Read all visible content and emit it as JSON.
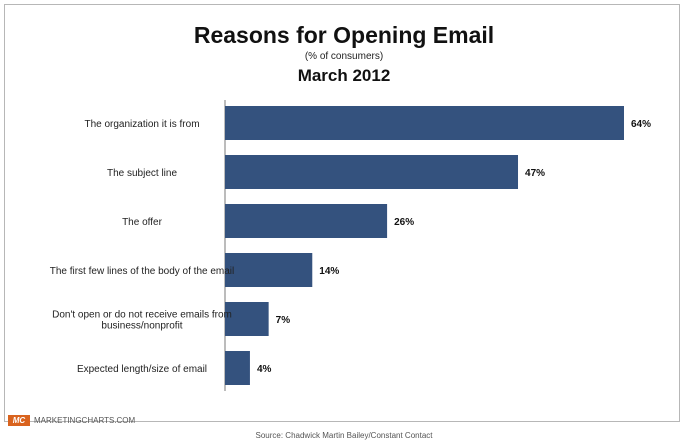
{
  "chart_data": {
    "type": "bar",
    "orientation": "horizontal",
    "title": "Reasons for Opening Email",
    "subtitle": "(% of consumers)",
    "date_label": "March 2012",
    "categories": [
      [
        "The organization it is from"
      ],
      [
        "The subject line"
      ],
      [
        "The offer"
      ],
      [
        "The first few lines of the body of the email"
      ],
      [
        "Don't open or do not receive emails from",
        "business/nonprofit"
      ],
      [
        "Expected length/size of email"
      ]
    ],
    "values": [
      64,
      47,
      26,
      14,
      7,
      4
    ],
    "value_labels": [
      "64%",
      "47%",
      "26%",
      "14%",
      "7%",
      "4%"
    ],
    "xlim": [
      0,
      64
    ],
    "bar_color": "#34527e",
    "grid": false
  },
  "footer": {
    "logo_text": "MC",
    "brand": "MARKETINGCHARTS.COM",
    "source": "Source: Chadwick Martin Bailey/Constant Contact",
    "logo_color": "#d9631e"
  }
}
